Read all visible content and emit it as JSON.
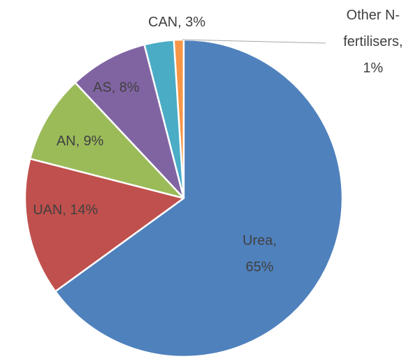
{
  "chart_data": {
    "type": "pie",
    "categories": [
      "Urea",
      "UAN",
      "AN",
      "AS",
      "CAN",
      "Other N-fertilisers"
    ],
    "values": [
      65,
      14,
      9,
      8,
      3,
      1
    ],
    "value_labels": [
      "Urea, 65%",
      "UAN, 14%",
      "AN, 9%",
      "AS, 8%",
      "CAN, 3%",
      "Other N-fertilisers, 1%"
    ],
    "colors": [
      "#4f81bd",
      "#c0504d",
      "#9bbb59",
      "#8064a2",
      "#4bacc6",
      "#f79646"
    ]
  }
}
